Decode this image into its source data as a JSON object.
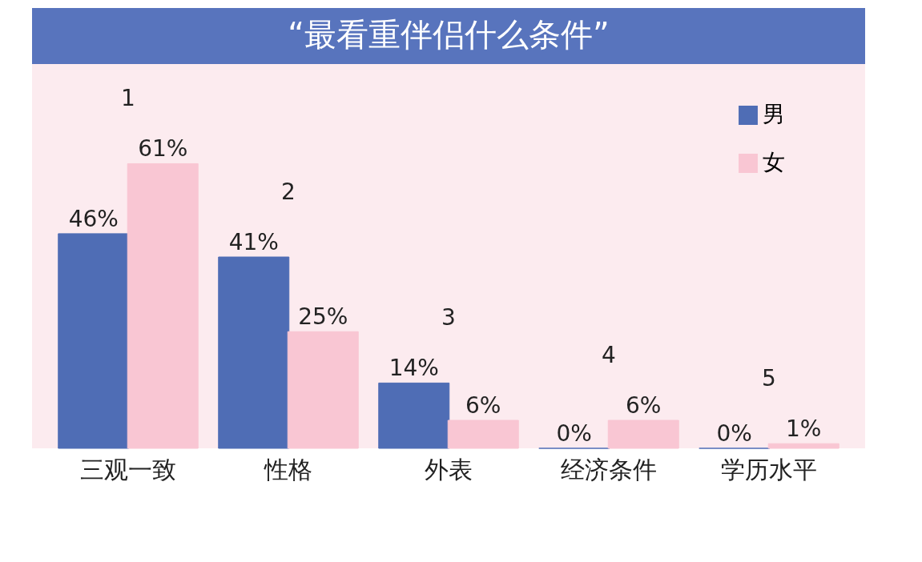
{
  "chart_data": {
    "type": "bar",
    "title": "“最看重伴侣什么条件”",
    "categories": [
      "三观一致",
      "性格",
      "外表",
      "经济条件",
      "学历水平"
    ],
    "series": [
      {
        "name": "男",
        "color": "#4f6db5",
        "values": [
          46,
          41,
          14,
          0,
          0
        ],
        "value_labels": [
          "46%",
          "41%",
          "14%",
          "0%",
          "0%"
        ]
      },
      {
        "name": "女",
        "color": "#f9c6d3",
        "values": [
          61,
          25,
          6,
          6,
          1
        ],
        "value_labels": [
          "61%",
          "25%",
          "6%",
          "6%",
          "1%"
        ]
      }
    ],
    "annotations": [
      "1",
      "2",
      "3",
      "4",
      "5"
    ],
    "legend": "top right",
    "grid": false
  }
}
